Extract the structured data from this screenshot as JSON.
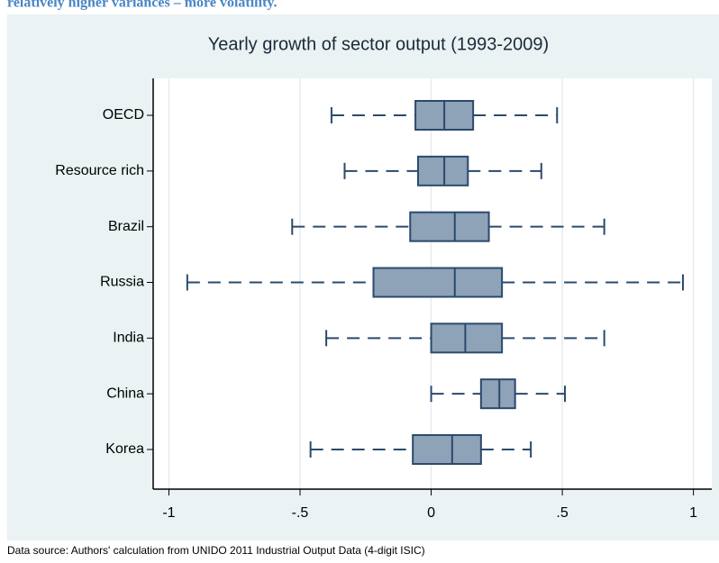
{
  "header": "relatively higher variances – more volatility.",
  "chart_data": {
    "type": "box",
    "title": "Yearly growth of sector output (1993-2009)",
    "note": "Data source: Authors' calculation from UNIDO 2011 Industrial Output Data (4-digit ISIC)",
    "categories": [
      "OECD",
      "Resource rich",
      "Brazil",
      "Russia",
      "India",
      "China",
      "Korea"
    ],
    "boxes": [
      {
        "low": -0.38,
        "q1": -0.06,
        "median": 0.05,
        "q3": 0.16,
        "high": 0.48
      },
      {
        "low": -0.33,
        "q1": -0.05,
        "median": 0.05,
        "q3": 0.14,
        "high": 0.42
      },
      {
        "low": -0.53,
        "q1": -0.08,
        "median": 0.09,
        "q3": 0.22,
        "high": 0.66
      },
      {
        "low": -0.93,
        "q1": -0.22,
        "median": 0.09,
        "q3": 0.27,
        "high": 0.96
      },
      {
        "low": -0.4,
        "q1": 0.0,
        "median": 0.13,
        "q3": 0.27,
        "high": 0.66
      },
      {
        "low": 0.0,
        "q1": 0.19,
        "median": 0.26,
        "q3": 0.32,
        "high": 0.51
      },
      {
        "low": -0.46,
        "q1": -0.07,
        "median": 0.08,
        "q3": 0.19,
        "high": 0.38
      }
    ],
    "color": "#8ea2b8",
    "edge_color": "#2b4a6c",
    "xlim": [
      -1.06,
      1.07
    ],
    "xticks": [
      -1,
      {
        "value": -0.5,
        "label": "-.5"
      },
      0,
      {
        "value": 0.5,
        "label": ".5"
      },
      1
    ],
    "grid": true
  }
}
